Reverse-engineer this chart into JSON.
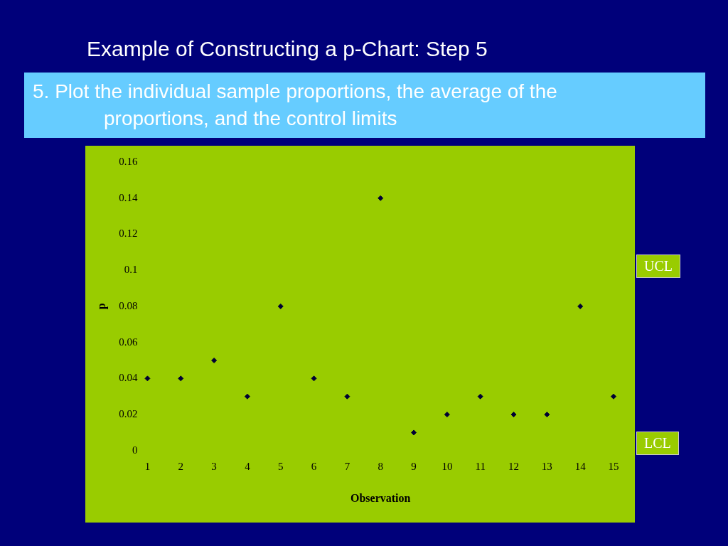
{
  "chart_data": {
    "type": "scatter",
    "title": "Example of Constructing a p-Chart: Step 5",
    "subtitle": "5. Plot the individual sample proportions, the average of the proportions, and the control limits",
    "xlabel": "Observation",
    "ylabel": "p",
    "x": [
      1,
      2,
      3,
      4,
      5,
      6,
      7,
      8,
      9,
      10,
      11,
      12,
      13,
      14,
      15
    ],
    "values": [
      0.04,
      0.04,
      0.05,
      0.03,
      0.08,
      0.04,
      0.03,
      0.14,
      0.01,
      0.02,
      0.03,
      0.02,
      0.02,
      0.08,
      0.03
    ],
    "color": "#000033",
    "marker": "diamond",
    "grid": false,
    "legend": false,
    "xlim": [
      1,
      15
    ],
    "xticks": [
      1,
      2,
      3,
      4,
      5,
      6,
      7,
      8,
      9,
      10,
      11,
      12,
      13,
      14,
      15
    ],
    "ylim": [
      0,
      0.16
    ],
    "yticks": [
      0,
      0.02,
      0.04,
      0.06,
      0.08,
      0.1,
      0.12,
      0.14,
      0.16
    ],
    "annotations": [
      "UCL",
      "LCL"
    ]
  }
}
